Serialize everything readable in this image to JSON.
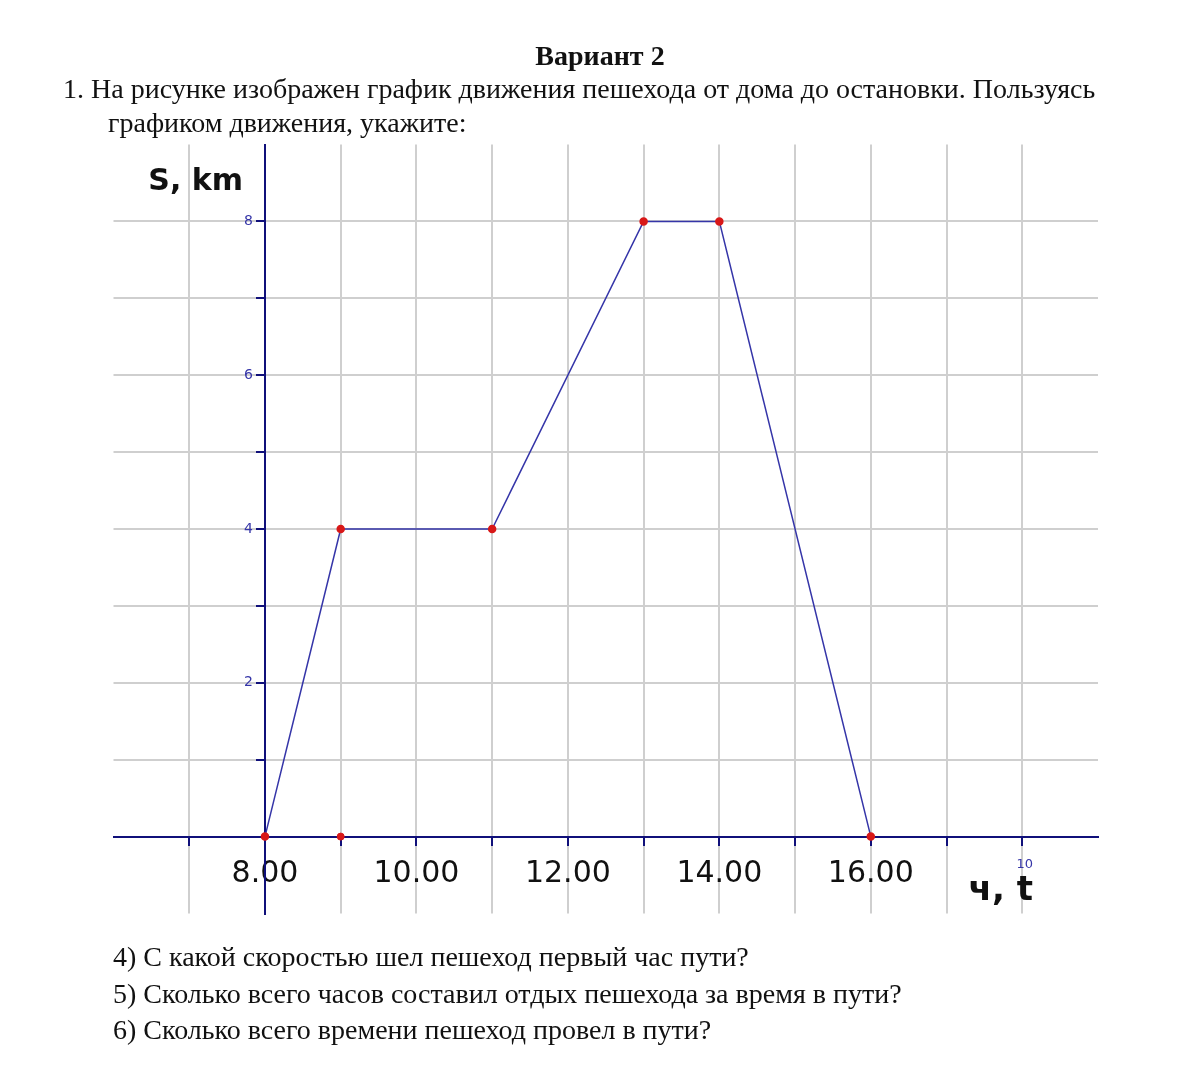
{
  "chart_data": {
    "type": "line",
    "title": "Вариант 2",
    "subtitle": "1. На рисунке изображен график движения пешехода от дома до остановки. Пользуясь графиком движения, укажите:",
    "xlabel": "ч, t",
    "ylabel": "S, km",
    "annotations": [
      "10",
      "4) С какой скоростью шел пешеход первый час пути?",
      "5) Сколько всего часов составил отдых пешехода за время в пути?",
      "6) Сколько всего времени пешеход провел в пути?"
    ],
    "series": [
      {
        "color": "#3535a8",
        "colors": [
          "#d81818",
          "#d81818",
          "#d81818",
          "#d81818",
          "#d81818",
          "#d81818"
        ],
        "x": [
          8,
          9,
          11,
          13,
          14,
          16
        ],
        "values": [
          0,
          4,
          4,
          8,
          8,
          0
        ]
      },
      {
        "type": "scatter",
        "color": "#d81818",
        "x": [
          9
        ],
        "values": [
          0
        ]
      }
    ],
    "xlim": [
      6,
      19
    ],
    "ylim": [
      -1,
      9
    ],
    "xticks": [
      {
        "value": 7,
        "label": null
      },
      {
        "value": 8,
        "label": "8.00"
      },
      {
        "value": 9,
        "label": null
      },
      {
        "value": 10,
        "label": "10.00"
      },
      {
        "value": 11,
        "label": null
      },
      {
        "value": 12,
        "label": "12.00"
      },
      {
        "value": 13,
        "label": null
      },
      {
        "value": 14,
        "label": "14.00"
      },
      {
        "value": 15,
        "label": null
      },
      {
        "value": 16,
        "label": "16.00"
      },
      {
        "value": 17,
        "label": null
      },
      {
        "value": 18,
        "label": null
      }
    ],
    "yticks": [
      {
        "value": 1,
        "label": null
      },
      2,
      {
        "value": 3,
        "label": null
      },
      4,
      {
        "value": 5,
        "label": null
      },
      6,
      {
        "value": 7,
        "label": null
      },
      8
    ],
    "grid": true,
    "marker": "circle",
    "line_style": "solid",
    "legend": false
  }
}
